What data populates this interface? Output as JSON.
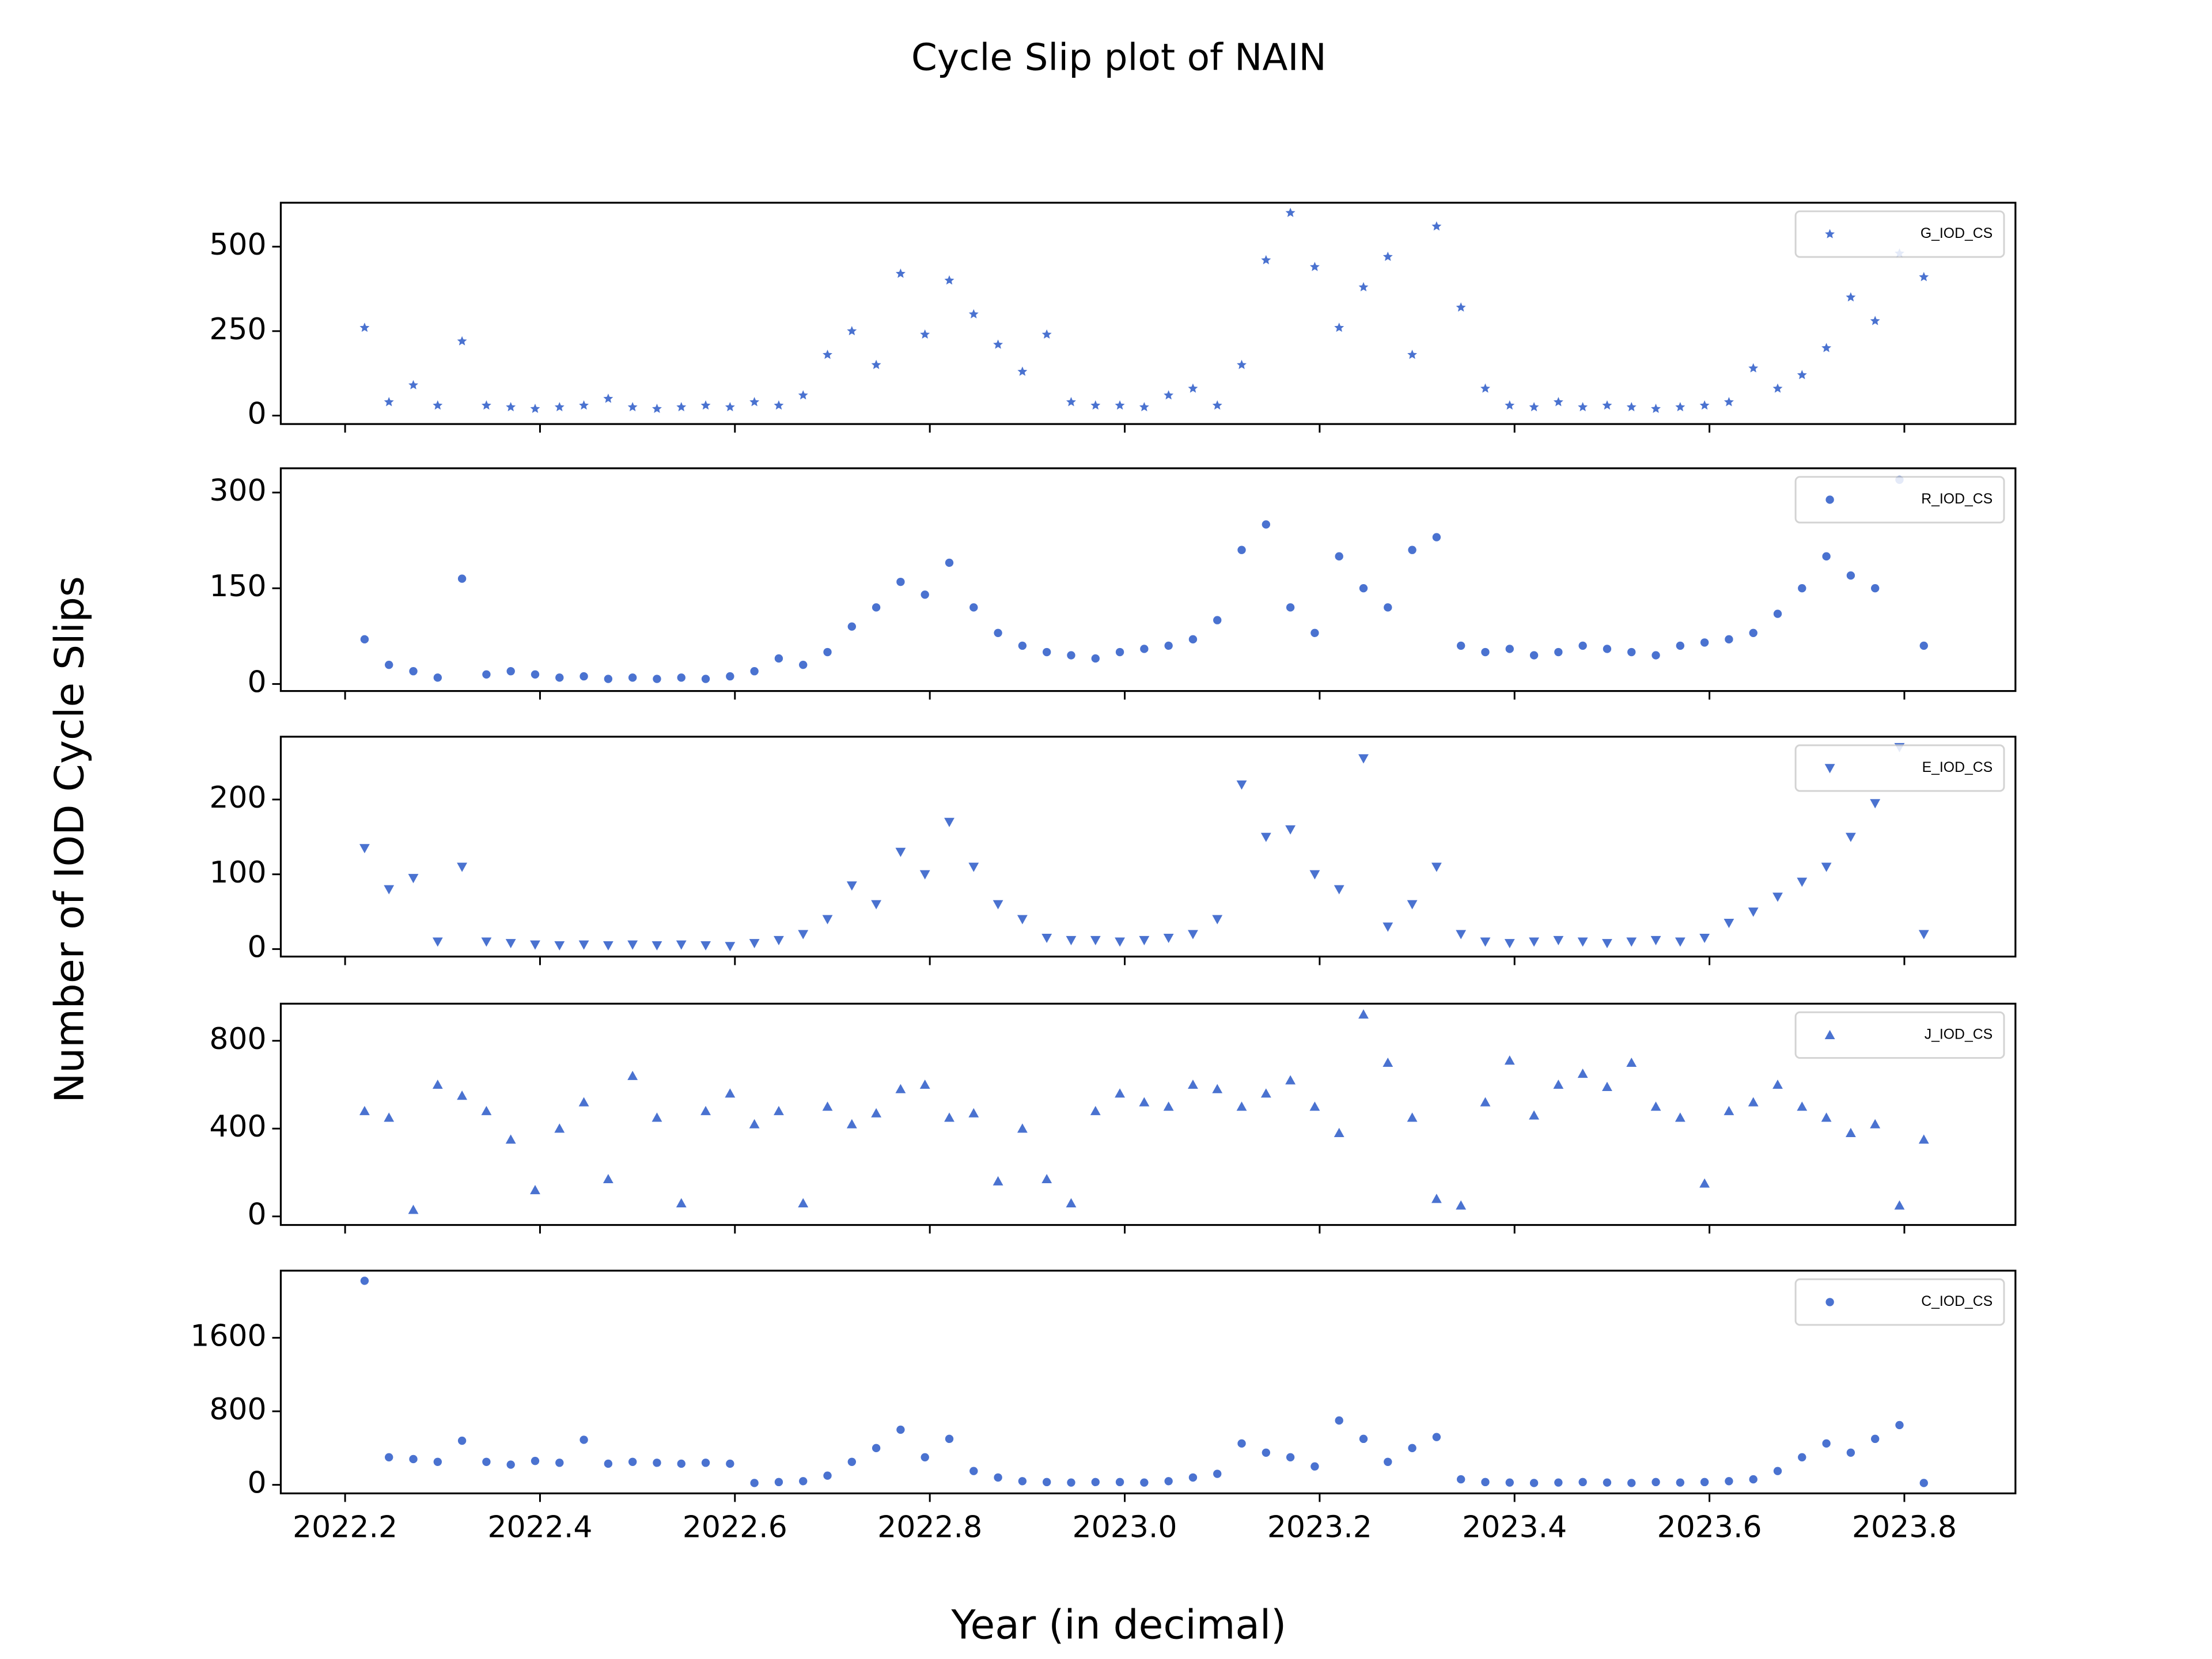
{
  "title": "Cycle Slip plot of NAIN",
  "y_label": "Number of IOD Cycle Slips",
  "x_label": "Year (in decimal)",
  "chart_data": [
    {
      "type": "scatter",
      "x": [
        2022.22,
        2022.245,
        2022.27,
        2022.295,
        2022.32,
        2022.345,
        2022.37,
        2022.395,
        2022.42,
        2022.445,
        2022.47,
        2022.495,
        2022.52,
        2022.545,
        2022.57,
        2022.595,
        2022.62,
        2022.645,
        2022.67,
        2022.695,
        2022.72,
        2022.745,
        2022.77,
        2022.795,
        2022.82,
        2022.845,
        2022.87,
        2022.895,
        2022.92,
        2022.945,
        2022.97,
        2022.995,
        2023.02,
        2023.045,
        2023.07,
        2023.095,
        2023.12,
        2023.145,
        2023.17,
        2023.195,
        2023.22,
        2023.245,
        2023.27,
        2023.295,
        2023.32,
        2023.345,
        2023.37,
        2023.395,
        2023.42,
        2023.445,
        2023.47,
        2023.495,
        2023.52,
        2023.545,
        2023.57,
        2023.595,
        2023.62,
        2023.645,
        2023.67,
        2023.695,
        2023.72,
        2023.745,
        2023.77,
        2023.795,
        2023.82
      ],
      "series": [
        {
          "name": "G_IOD_CS",
          "color": "#4a72d0",
          "marker": "star",
          "values": [
            260,
            40,
            90,
            30,
            220,
            30,
            25,
            20,
            25,
            30,
            50,
            25,
            20,
            25,
            30,
            25,
            40,
            30,
            60,
            180,
            250,
            150,
            420,
            240,
            400,
            300,
            210,
            130,
            240,
            40,
            30,
            30,
            25,
            60,
            80,
            30,
            150,
            460,
            600,
            440,
            260,
            380,
            470,
            180,
            560,
            320,
            80,
            30,
            25,
            40,
            25,
            30,
            25,
            20,
            25,
            30,
            40,
            140,
            80,
            120,
            200,
            350,
            280,
            480,
            410
          ]
        }
      ],
      "xlim": [
        2022.134,
        2023.914
      ],
      "ylim": [
        -25,
        630
      ],
      "yticks": [
        0,
        250,
        500
      ],
      "legend": "upper right"
    },
    {
      "type": "scatter",
      "x": [
        2022.22,
        2022.245,
        2022.27,
        2022.295,
        2022.32,
        2022.345,
        2022.37,
        2022.395,
        2022.42,
        2022.445,
        2022.47,
        2022.495,
        2022.52,
        2022.545,
        2022.57,
        2022.595,
        2022.62,
        2022.645,
        2022.67,
        2022.695,
        2022.72,
        2022.745,
        2022.77,
        2022.795,
        2022.82,
        2022.845,
        2022.87,
        2022.895,
        2022.92,
        2022.945,
        2022.97,
        2022.995,
        2023.02,
        2023.045,
        2023.07,
        2023.095,
        2023.12,
        2023.145,
        2023.17,
        2023.195,
        2023.22,
        2023.245,
        2023.27,
        2023.295,
        2023.32,
        2023.345,
        2023.37,
        2023.395,
        2023.42,
        2023.445,
        2023.47,
        2023.495,
        2023.52,
        2023.545,
        2023.57,
        2023.595,
        2023.62,
        2023.645,
        2023.67,
        2023.695,
        2023.72,
        2023.745,
        2023.77,
        2023.795,
        2023.82
      ],
      "series": [
        {
          "name": "R_IOD_CS",
          "color": "#4a72d0",
          "marker": "circle",
          "values": [
            70,
            30,
            20,
            10,
            165,
            15,
            20,
            15,
            10,
            12,
            8,
            10,
            8,
            10,
            8,
            12,
            20,
            40,
            30,
            50,
            90,
            120,
            160,
            140,
            190,
            120,
            80,
            60,
            50,
            45,
            40,
            50,
            55,
            60,
            70,
            100,
            210,
            250,
            120,
            80,
            200,
            150,
            120,
            210,
            230,
            60,
            50,
            55,
            45,
            50,
            60,
            55,
            50,
            45,
            60,
            65,
            70,
            80,
            110,
            150,
            200,
            170,
            150,
            320,
            60
          ]
        }
      ],
      "xlim": [
        2022.134,
        2023.914
      ],
      "ylim": [
        -11,
        338
      ],
      "yticks": [
        0,
        150,
        300
      ],
      "legend": "upper right"
    },
    {
      "type": "scatter",
      "x": [
        2022.22,
        2022.245,
        2022.27,
        2022.295,
        2022.32,
        2022.345,
        2022.37,
        2022.395,
        2022.42,
        2022.445,
        2022.47,
        2022.495,
        2022.52,
        2022.545,
        2022.57,
        2022.595,
        2022.62,
        2022.645,
        2022.67,
        2022.695,
        2022.72,
        2022.745,
        2022.77,
        2022.795,
        2022.82,
        2022.845,
        2022.87,
        2022.895,
        2022.92,
        2022.945,
        2022.97,
        2022.995,
        2023.02,
        2023.045,
        2023.07,
        2023.095,
        2023.12,
        2023.145,
        2023.17,
        2023.195,
        2023.22,
        2023.245,
        2023.27,
        2023.295,
        2023.32,
        2023.345,
        2023.37,
        2023.395,
        2023.42,
        2023.445,
        2023.47,
        2023.495,
        2023.52,
        2023.545,
        2023.57,
        2023.595,
        2023.62,
        2023.645,
        2023.67,
        2023.695,
        2023.72,
        2023.745,
        2023.77,
        2023.795,
        2023.82
      ],
      "series": [
        {
          "name": "E_IOD_CS",
          "color": "#4a72d0",
          "marker": "triangle-down",
          "values": [
            135,
            80,
            95,
            10,
            110,
            10,
            8,
            6,
            5,
            6,
            5,
            6,
            5,
            6,
            5,
            4,
            8,
            12,
            20,
            40,
            85,
            60,
            130,
            100,
            170,
            110,
            60,
            40,
            15,
            12,
            12,
            10,
            12,
            15,
            20,
            40,
            220,
            150,
            160,
            100,
            80,
            255,
            30,
            60,
            110,
            20,
            10,
            8,
            10,
            12,
            10,
            8,
            10,
            12,
            10,
            15,
            35,
            50,
            70,
            90,
            110,
            150,
            195,
            270,
            20
          ]
        }
      ],
      "xlim": [
        2022.134,
        2023.914
      ],
      "ylim": [
        -10,
        284
      ],
      "yticks": [
        0,
        100,
        200
      ],
      "legend": "upper right"
    },
    {
      "type": "scatter",
      "x": [
        2022.22,
        2022.245,
        2022.27,
        2022.295,
        2022.32,
        2022.345,
        2022.37,
        2022.395,
        2022.42,
        2022.445,
        2022.47,
        2022.495,
        2022.52,
        2022.545,
        2022.57,
        2022.595,
        2022.62,
        2022.645,
        2022.67,
        2022.695,
        2022.72,
        2022.745,
        2022.77,
        2022.795,
        2022.82,
        2022.845,
        2022.87,
        2022.895,
        2022.92,
        2022.945,
        2022.97,
        2022.995,
        2023.02,
        2023.045,
        2023.07,
        2023.095,
        2023.12,
        2023.145,
        2023.17,
        2023.195,
        2023.22,
        2023.245,
        2023.27,
        2023.295,
        2023.32,
        2023.345,
        2023.37,
        2023.395,
        2023.42,
        2023.445,
        2023.47,
        2023.495,
        2023.52,
        2023.545,
        2023.57,
        2023.595,
        2023.62,
        2023.645,
        2023.67,
        2023.695,
        2023.72,
        2023.745,
        2023.77,
        2023.795,
        2023.82
      ],
      "series": [
        {
          "name": "J_IOD_CS",
          "color": "#4a72d0",
          "marker": "triangle-up",
          "values": [
            480,
            450,
            30,
            600,
            550,
            480,
            350,
            120,
            400,
            520,
            170,
            640,
            450,
            60,
            480,
            560,
            420,
            480,
            60,
            500,
            420,
            470,
            580,
            600,
            450,
            470,
            160,
            400,
            170,
            60,
            480,
            560,
            520,
            500,
            600,
            580,
            500,
            560,
            620,
            500,
            380,
            920,
            700,
            450,
            80,
            50,
            520,
            710,
            460,
            600,
            650,
            590,
            700,
            500,
            450,
            150,
            480,
            520,
            600,
            500,
            450,
            380,
            420,
            50,
            350
          ]
        }
      ],
      "xlim": [
        2022.134,
        2023.914
      ],
      "ylim": [
        -39,
        969
      ],
      "yticks": [
        0,
        400,
        800
      ],
      "legend": "upper right"
    },
    {
      "type": "scatter",
      "x": [
        2022.22,
        2022.245,
        2022.27,
        2022.295,
        2022.32,
        2022.345,
        2022.37,
        2022.395,
        2022.42,
        2022.445,
        2022.47,
        2022.495,
        2022.52,
        2022.545,
        2022.57,
        2022.595,
        2022.62,
        2022.645,
        2022.67,
        2022.695,
        2022.72,
        2022.745,
        2022.77,
        2022.795,
        2022.82,
        2022.845,
        2022.87,
        2022.895,
        2022.92,
        2022.945,
        2022.97,
        2022.995,
        2023.02,
        2023.045,
        2023.07,
        2023.095,
        2023.12,
        2023.145,
        2023.17,
        2023.195,
        2023.22,
        2023.245,
        2023.27,
        2023.295,
        2023.32,
        2023.345,
        2023.37,
        2023.395,
        2023.42,
        2023.445,
        2023.47,
        2023.495,
        2023.52,
        2023.545,
        2023.57,
        2023.595,
        2023.62,
        2023.645,
        2023.67,
        2023.695,
        2023.72,
        2023.745,
        2023.77,
        2023.795,
        2023.82
      ],
      "series": [
        {
          "name": "C_IOD_CS",
          "color": "#4a72d0",
          "marker": "circle",
          "values": [
            2220,
            300,
            280,
            250,
            480,
            250,
            220,
            260,
            240,
            490,
            230,
            250,
            240,
            230,
            240,
            230,
            20,
            30,
            40,
            100,
            250,
            400,
            600,
            300,
            500,
            150,
            80,
            40,
            30,
            25,
            30,
            30,
            25,
            40,
            80,
            120,
            450,
            350,
            300,
            200,
            700,
            500,
            250,
            400,
            520,
            60,
            30,
            25,
            20,
            25,
            30,
            25,
            20,
            30,
            25,
            30,
            40,
            60,
            150,
            300,
            450,
            350,
            500,
            650,
            20
          ]
        }
      ],
      "xlim": [
        2022.134,
        2023.914
      ],
      "ylim": [
        -93,
        2330
      ],
      "yticks": [
        0,
        800,
        1600
      ],
      "xticks": [
        2022.2,
        2022.4,
        2022.6,
        2022.8,
        {
          "value": 2023,
          "label": "2023.0"
        },
        2023.2,
        2023.4,
        2023.6,
        2023.8
      ],
      "legend": "upper right"
    }
  ]
}
